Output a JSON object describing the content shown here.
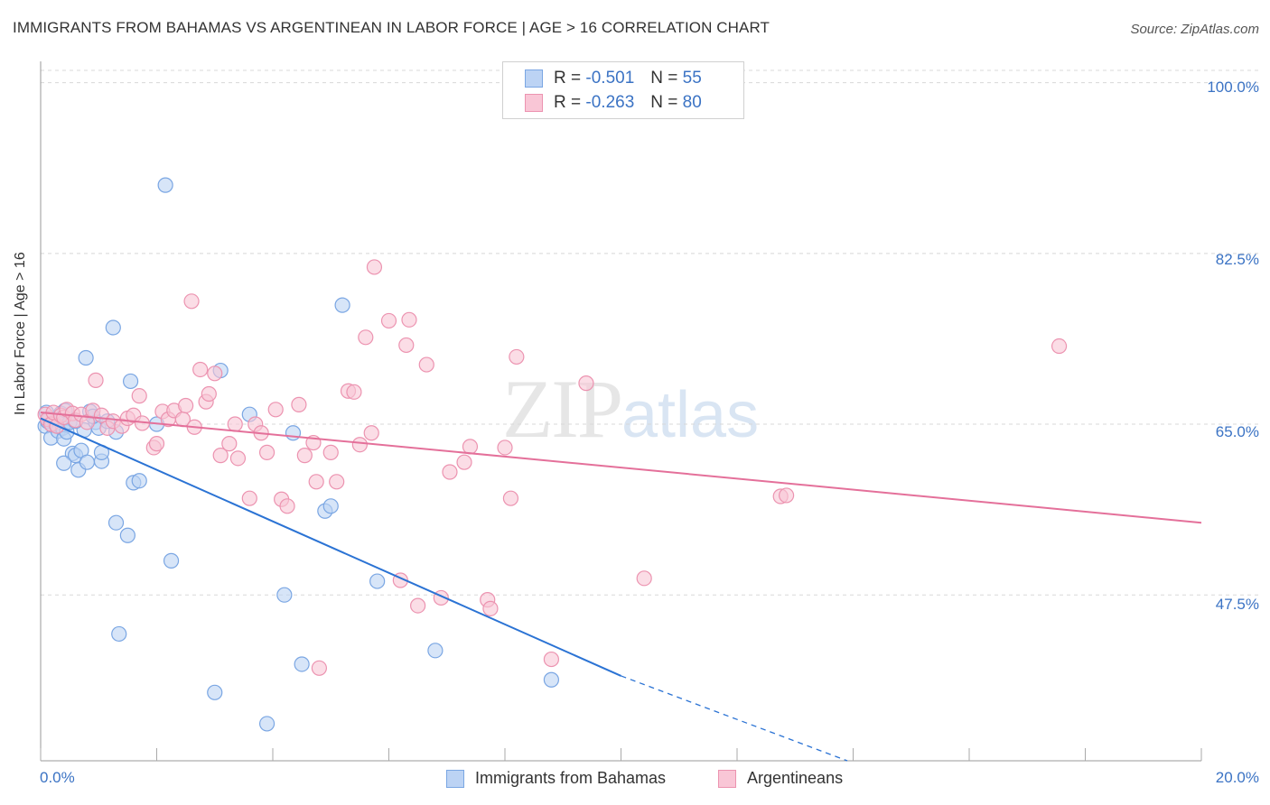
{
  "header": {
    "title": "IMMIGRANTS FROM BAHAMAS VS ARGENTINEAN IN LABOR FORCE | AGE > 16 CORRELATION CHART",
    "source": "Source: ZipAtlas.com"
  },
  "watermark": {
    "zip": "ZIP",
    "atlas": "atlas"
  },
  "legend": {
    "rows": [
      {
        "r_label": "R = ",
        "r_value": "-0.501",
        "n_label": "N = ",
        "n_value": "55"
      },
      {
        "r_label": "R = ",
        "r_value": "-0.263",
        "n_label": "N = ",
        "n_value": "80"
      }
    ],
    "bottom": [
      "Immigrants from Bahamas",
      "Argentineans"
    ]
  },
  "colors": {
    "blue_fill": "#bcd3f4",
    "blue_stroke": "#7aa6e3",
    "blue_line": "#2b73d4",
    "pink_fill": "#f9c6d6",
    "pink_stroke": "#ec93b0",
    "pink_line": "#e4709a",
    "grid": "#d8d8d8",
    "tick_label": "#3b73c4"
  },
  "chart_data": {
    "type": "scatter",
    "xlabel": "",
    "ylabel": "In Labor Force | Age > 16",
    "xlim": [
      0,
      20
    ],
    "ylim": [
      30.5,
      102
    ],
    "x_tick_labels": [
      "0.0%",
      "20.0%"
    ],
    "y_ticks": [
      100,
      82.5,
      65,
      47.5
    ],
    "y_tick_labels": [
      "100.0%",
      "82.5%",
      "65.0%",
      "47.5%"
    ],
    "grid": true,
    "legend_position": "top-center",
    "series": [
      {
        "name": "Immigrants from Bahamas",
        "color": "#7aa6e3",
        "points": [
          [
            0.08,
            64.8
          ],
          [
            0.1,
            66.2
          ],
          [
            0.12,
            65.3
          ],
          [
            0.15,
            65.6
          ],
          [
            0.18,
            63.6
          ],
          [
            0.2,
            64.9
          ],
          [
            0.25,
            65.1
          ],
          [
            0.28,
            65.5
          ],
          [
            0.3,
            64.3
          ],
          [
            0.35,
            66.1
          ],
          [
            0.38,
            64.6
          ],
          [
            0.4,
            63.5
          ],
          [
            0.42,
            66.4
          ],
          [
            0.45,
            64.2
          ],
          [
            0.5,
            65.2
          ],
          [
            0.55,
            62.0
          ],
          [
            0.6,
            61.8
          ],
          [
            0.65,
            60.3
          ],
          [
            0.7,
            62.3
          ],
          [
            0.75,
            64.4
          ],
          [
            0.8,
            61.1
          ],
          [
            0.85,
            66.3
          ],
          [
            0.95,
            65.2
          ],
          [
            1.0,
            64.6
          ],
          [
            1.05,
            61.2
          ],
          [
            1.05,
            62.1
          ],
          [
            1.15,
            65.3
          ],
          [
            0.4,
            61.0
          ],
          [
            0.78,
            71.8
          ],
          [
            1.3,
            64.2
          ],
          [
            1.3,
            54.9
          ],
          [
            1.35,
            43.5
          ],
          [
            1.5,
            53.6
          ],
          [
            1.55,
            69.4
          ],
          [
            1.6,
            59.0
          ],
          [
            1.7,
            59.2
          ],
          [
            2.15,
            89.5
          ],
          [
            2.25,
            51.0
          ],
          [
            2.0,
            65.0
          ],
          [
            3.0,
            37.5
          ],
          [
            3.1,
            70.5
          ],
          [
            3.6,
            66.0
          ],
          [
            3.9,
            34.3
          ],
          [
            4.2,
            47.5
          ],
          [
            4.35,
            64.1
          ],
          [
            4.5,
            40.4
          ],
          [
            4.9,
            56.1
          ],
          [
            5.0,
            56.6
          ],
          [
            5.2,
            77.2
          ],
          [
            5.8,
            48.9
          ],
          [
            6.8,
            41.8
          ],
          [
            8.8,
            38.8
          ],
          [
            1.25,
            74.9
          ],
          [
            0.6,
            65.3
          ],
          [
            0.9,
            65.8
          ]
        ]
      },
      {
        "name": "Argentineans",
        "color": "#ec93b0",
        "points": [
          [
            0.08,
            66.0
          ],
          [
            0.12,
            65.5
          ],
          [
            0.18,
            65.0
          ],
          [
            0.22,
            66.2
          ],
          [
            0.28,
            64.8
          ],
          [
            0.35,
            65.9
          ],
          [
            0.4,
            65.7
          ],
          [
            0.45,
            66.5
          ],
          [
            0.55,
            66.1
          ],
          [
            0.6,
            65.4
          ],
          [
            0.7,
            66.0
          ],
          [
            0.8,
            65.2
          ],
          [
            0.9,
            66.4
          ],
          [
            0.95,
            69.5
          ],
          [
            1.05,
            65.9
          ],
          [
            1.15,
            64.6
          ],
          [
            1.25,
            65.3
          ],
          [
            1.4,
            64.8
          ],
          [
            1.5,
            65.6
          ],
          [
            1.6,
            65.9
          ],
          [
            1.7,
            67.9
          ],
          [
            1.75,
            65.1
          ],
          [
            1.95,
            62.6
          ],
          [
            2.0,
            63.0
          ],
          [
            2.1,
            66.3
          ],
          [
            2.2,
            65.5
          ],
          [
            2.3,
            66.4
          ],
          [
            2.45,
            65.5
          ],
          [
            2.5,
            66.9
          ],
          [
            2.6,
            77.6
          ],
          [
            2.65,
            64.7
          ],
          [
            2.75,
            70.6
          ],
          [
            2.85,
            67.3
          ],
          [
            2.9,
            68.1
          ],
          [
            3.0,
            70.2
          ],
          [
            3.1,
            61.8
          ],
          [
            3.25,
            63.0
          ],
          [
            3.35,
            65.0
          ],
          [
            3.4,
            61.5
          ],
          [
            3.6,
            57.4
          ],
          [
            3.7,
            65.0
          ],
          [
            3.8,
            64.1
          ],
          [
            3.9,
            62.1
          ],
          [
            4.05,
            66.5
          ],
          [
            4.15,
            57.3
          ],
          [
            4.25,
            56.6
          ],
          [
            4.45,
            67.0
          ],
          [
            4.55,
            61.8
          ],
          [
            4.7,
            63.1
          ],
          [
            4.75,
            59.1
          ],
          [
            4.8,
            40.0
          ],
          [
            5.0,
            62.1
          ],
          [
            5.1,
            59.1
          ],
          [
            5.3,
            68.4
          ],
          [
            5.4,
            68.3
          ],
          [
            5.5,
            62.9
          ],
          [
            5.6,
            73.9
          ],
          [
            5.7,
            64.1
          ],
          [
            5.75,
            81.1
          ],
          [
            6.0,
            75.6
          ],
          [
            6.2,
            49.0
          ],
          [
            6.3,
            73.1
          ],
          [
            6.35,
            75.7
          ],
          [
            6.5,
            46.4
          ],
          [
            6.65,
            71.1
          ],
          [
            6.9,
            47.2
          ],
          [
            7.05,
            60.1
          ],
          [
            7.3,
            61.1
          ],
          [
            7.4,
            62.7
          ],
          [
            7.7,
            47.0
          ],
          [
            7.75,
            46.1
          ],
          [
            8.0,
            62.6
          ],
          [
            8.1,
            57.4
          ],
          [
            8.2,
            71.9
          ],
          [
            8.8,
            40.9
          ],
          [
            9.4,
            69.2
          ],
          [
            10.4,
            49.2
          ],
          [
            12.75,
            57.6
          ],
          [
            12.85,
            57.7
          ],
          [
            17.55,
            73.0
          ]
        ]
      }
    ],
    "trend_lines": [
      {
        "series": "Immigrants from Bahamas",
        "x_start": 0.0,
        "y_start": 65.6,
        "x_end": 10.0,
        "y_end": 39.2,
        "dashed_to_x": 13.9,
        "dashed_to_y": 30.5
      },
      {
        "series": "Argentineans",
        "x_start": 0.0,
        "y_start": 66.2,
        "x_end": 20.0,
        "y_end": 54.9
      }
    ]
  }
}
